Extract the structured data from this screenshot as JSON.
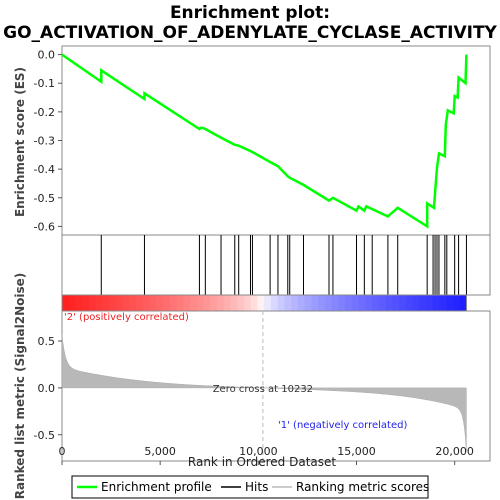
{
  "chart_data": {
    "type": "line",
    "title": "Enrichment plot:",
    "subtitle": "GO_ACTIVATION_OF_ADENYLATE_CYCLASE_ACTIVITY",
    "top_panel": {
      "ylabel": "Enrichment score (ES)",
      "ylim": [
        -0.63,
        0.03
      ],
      "yticks": [
        0.0,
        -0.1,
        -0.2,
        -0.3,
        -0.4,
        -0.5,
        -0.6
      ],
      "ytick_labels": [
        "0.0",
        "-0.1",
        "-0.2",
        "-0.3",
        "-0.4",
        "-0.5",
        "-0.6"
      ],
      "series_name": "Enrichment profile",
      "color": "#00ff00",
      "es_points": [
        [
          0,
          0.0
        ],
        [
          1999,
          -0.096
        ],
        [
          2000,
          -0.056
        ],
        [
          4199,
          -0.155
        ],
        [
          4200,
          -0.135
        ],
        [
          6999,
          -0.262
        ],
        [
          7000,
          -0.254
        ],
        [
          7100,
          -0.26
        ],
        [
          7299,
          -0.258
        ],
        [
          7300,
          -0.252
        ],
        [
          8099,
          -0.29
        ],
        [
          8100,
          -0.283
        ],
        [
          8799,
          -0.315
        ],
        [
          8800,
          -0.308
        ],
        [
          8999,
          -0.32
        ],
        [
          9000,
          -0.314
        ],
        [
          9599,
          -0.341
        ],
        [
          9600,
          -0.335
        ],
        [
          9699,
          -0.34
        ],
        [
          9700,
          -0.333
        ],
        [
          10599,
          -0.374
        ],
        [
          10600,
          -0.367
        ],
        [
          10999,
          -0.385
        ],
        [
          11000,
          -0.378
        ],
        [
          11399,
          -0.397
        ],
        [
          11400,
          -0.39
        ],
        [
          11599,
          -0.4
        ],
        [
          11600,
          -0.393
        ],
        [
          12299,
          -0.426
        ],
        [
          12300,
          -0.42
        ],
        [
          13599,
          -0.48
        ],
        [
          13600,
          -0.473
        ],
        [
          13799,
          -0.485
        ],
        [
          13800,
          -0.478
        ],
        [
          14999,
          -0.534
        ],
        [
          15000,
          -0.527
        ],
        [
          15399,
          -0.545
        ],
        [
          15400,
          -0.538
        ],
        [
          15799,
          -0.557
        ],
        [
          15800,
          -0.55
        ],
        [
          16599,
          -0.588
        ],
        [
          16600,
          -0.58
        ],
        [
          17099,
          -0.604
        ],
        [
          17100,
          -0.597
        ],
        [
          18599,
          -0.665
        ],
        [
          18600,
          -0.62
        ],
        [
          18899,
          -0.633
        ],
        [
          18900,
          -0.62
        ],
        [
          18999,
          -0.624
        ],
        [
          19000,
          -0.61
        ],
        [
          19099,
          -0.614
        ],
        [
          19100,
          -0.6
        ],
        [
          19199,
          -0.605
        ],
        [
          19200,
          -0.59
        ],
        [
          19499,
          -0.604
        ],
        [
          19500,
          -0.59
        ],
        [
          19599,
          -0.594
        ],
        [
          19600,
          -0.58
        ],
        [
          19999,
          -0.598
        ],
        [
          20000,
          -0.584
        ],
        [
          20199,
          -0.592
        ],
        [
          20200,
          -0.578
        ],
        [
          20599,
          -0.595
        ],
        [
          20600,
          0.0
        ]
      ],
      "es_points_note": "x in dataset rank, y in ES",
      "es_curve": [
        [
          0,
          0.0
        ],
        [
          2000,
          -0.095
        ],
        [
          2001,
          -0.055
        ],
        [
          4199,
          -0.155
        ],
        [
          4200,
          -0.135
        ],
        [
          7000,
          -0.26
        ],
        [
          7100,
          -0.255
        ],
        [
          7300,
          -0.26
        ],
        [
          8100,
          -0.29
        ],
        [
          8800,
          -0.315
        ],
        [
          9000,
          -0.318
        ],
        [
          9700,
          -0.34
        ],
        [
          10600,
          -0.375
        ],
        [
          11000,
          -0.39
        ],
        [
          11500,
          -0.425
        ],
        [
          11600,
          -0.43
        ],
        [
          12300,
          -0.455
        ],
        [
          13600,
          -0.51
        ],
        [
          13800,
          -0.5
        ],
        [
          15000,
          -0.545
        ],
        [
          15100,
          -0.53
        ],
        [
          15400,
          -0.545
        ],
        [
          15500,
          -0.53
        ],
        [
          16600,
          -0.565
        ],
        [
          17100,
          -0.535
        ],
        [
          18599,
          -0.6
        ],
        [
          18600,
          -0.52
        ],
        [
          18950,
          -0.535
        ],
        [
          19000,
          -0.485
        ],
        [
          19100,
          -0.395
        ],
        [
          19200,
          -0.345
        ],
        [
          19500,
          -0.355
        ],
        [
          19550,
          -0.245
        ],
        [
          19650,
          -0.195
        ],
        [
          19950,
          -0.205
        ],
        [
          20000,
          -0.145
        ],
        [
          20150,
          -0.15
        ],
        [
          20200,
          -0.08
        ],
        [
          20550,
          -0.1
        ],
        [
          20600,
          0.0
        ]
      ]
    },
    "hits": [
      2000,
      4200,
      7000,
      7300,
      8100,
      8800,
      9000,
      9600,
      9700,
      10600,
      11000,
      11500,
      11600,
      12300,
      13600,
      13800,
      15000,
      15400,
      15800,
      16600,
      17100,
      18600,
      18900,
      19000,
      19100,
      19200,
      19500,
      19600,
      20000,
      20200,
      20600
    ],
    "bottom_panel": {
      "ylabel": "Ranked list metric (Signal2Noise)",
      "ylim": [
        -0.78,
        0.82
      ],
      "yticks": [
        0.5,
        0.0,
        -0.5
      ],
      "ytick_labels": [
        "0.5",
        "0.0",
        "-0.5"
      ],
      "pos_label": "'2' (positively correlated)",
      "neg_label": "'1' (negatively correlated)",
      "zero_cross_label": "Zero cross at 10232",
      "zero_cross": 10232
    },
    "xlabel": "Rank in Ordered Dataset",
    "xlim": [
      0,
      21800
    ],
    "xticks": [
      0,
      5000,
      10000,
      15000,
      20000
    ],
    "xtick_labels": [
      "0",
      "5,000",
      "10,000",
      "15,000",
      "20,000"
    ],
    "n_genes": 20600,
    "legend": [
      "Enrichment profile",
      "Hits",
      "Ranking metric scores"
    ]
  }
}
